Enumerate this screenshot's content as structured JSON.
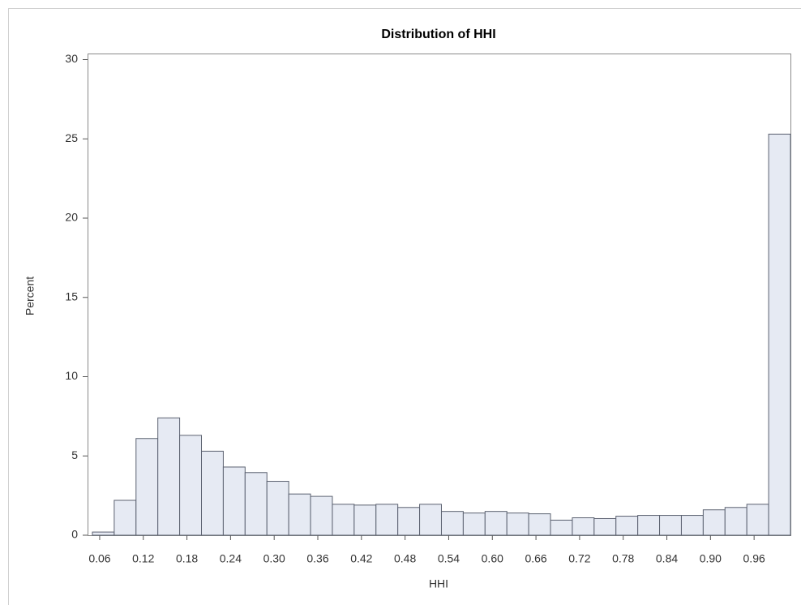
{
  "chart_data": {
    "type": "histogram",
    "title": "Distribution of HHI",
    "x_label": "HHI",
    "y_label": "Percent",
    "bins": [
      0.05,
      0.08,
      0.11,
      0.14,
      0.17,
      0.2,
      0.23,
      0.26,
      0.29,
      0.32,
      0.35,
      0.38,
      0.41,
      0.44,
      0.47,
      0.5,
      0.53,
      0.56,
      0.59,
      0.62,
      0.65,
      0.68,
      0.71,
      0.74,
      0.77,
      0.8,
      0.83,
      0.86,
      0.89,
      0.92,
      0.95,
      0.98,
      1.01
    ],
    "values": [
      0.2,
      2.2,
      6.1,
      7.4,
      6.3,
      5.3,
      4.3,
      3.95,
      3.4,
      2.6,
      2.45,
      1.95,
      1.9,
      1.95,
      1.75,
      1.95,
      1.5,
      1.4,
      1.5,
      1.4,
      1.35,
      0.95,
      1.1,
      1.05,
      1.2,
      1.25,
      1.25,
      1.25,
      1.6,
      1.75,
      1.95,
      25.3
    ],
    "color": "#e6eaf3",
    "edge_color": "#5b6170",
    "xlim": [
      0.04,
      1.01
    ],
    "xticks": [
      0.06,
      0.12,
      0.18,
      0.24,
      {
        "value": 0.3,
        "label": "0.30"
      },
      0.36,
      0.42,
      0.48,
      0.54,
      {
        "value": 0.6,
        "label": "0.60"
      },
      0.66,
      0.72,
      0.78,
      0.84,
      {
        "value": 0.9,
        "label": "0.90"
      },
      0.96
    ],
    "ylim": [
      0,
      30
    ],
    "yticks": [
      0,
      5,
      10,
      15,
      20,
      25,
      30
    ],
    "grid": false
  }
}
